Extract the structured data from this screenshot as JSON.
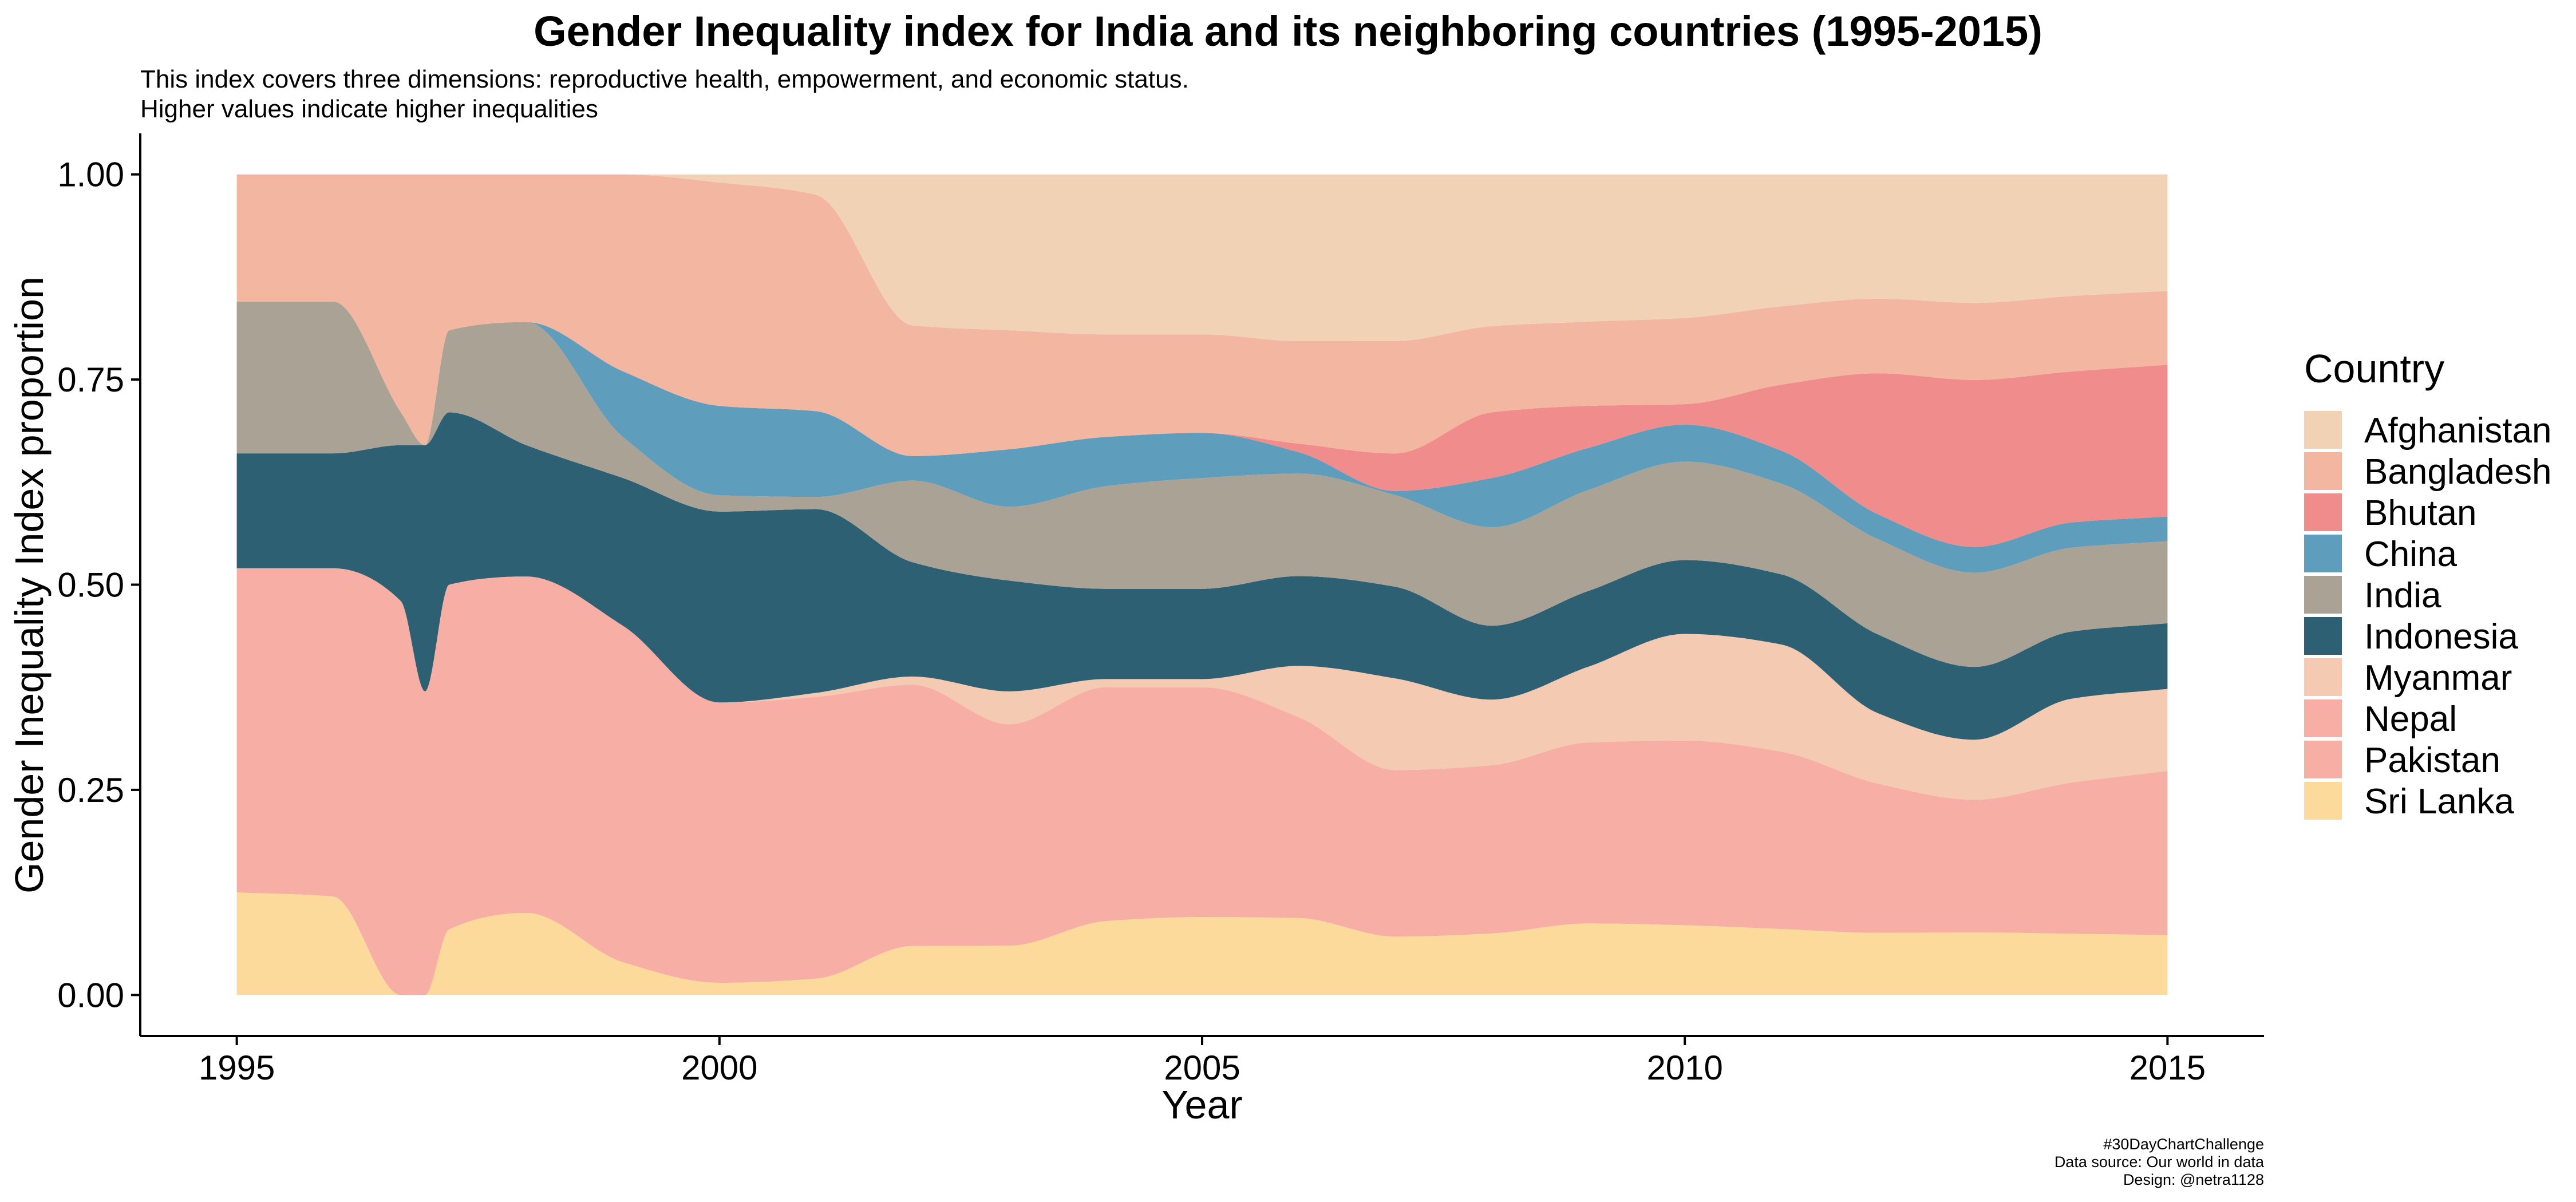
{
  "chart_data": {
    "type": "area",
    "title": "Gender Inequality index for India and its neighboring countries (1995-2015)",
    "subtitle_lines": [
      "This index covers three dimensions: reproductive health, empowerment, and economic status.",
      "Higher values indicate higher inequalities"
    ],
    "xlabel": "Year",
    "ylabel": "Gender Inequality Index proportion",
    "x_ticks": [
      1995,
      2000,
      2005,
      2010,
      2015
    ],
    "x_tick_labels": [
      "1995",
      "2000",
      "2005",
      "2010",
      "2015"
    ],
    "y_ticks": [
      0,
      0.25,
      0.5,
      0.75,
      1
    ],
    "y_tick_labels": [
      "0.00",
      "0.25",
      "0.50",
      "0.75",
      "1.00"
    ],
    "xlim": [
      1994,
      2016
    ],
    "ylim": [
      -0.05,
      1.05
    ],
    "stacked_proportion": true,
    "curve": "smooth",
    "legend_title": "Country",
    "legend_position": "right",
    "grid": false,
    "x": [
      1995,
      1996,
      1996.7,
      1996.95,
      1997.2,
      1998,
      1999,
      2000,
      2001,
      2002,
      2003,
      2004,
      2005,
      2006,
      2007,
      2008,
      2009,
      2010,
      2011,
      2012,
      2013,
      2014,
      2015
    ],
    "series": [
      {
        "name": "Sri Lanka",
        "color": "#FCDA9C",
        "values": [
          0.125,
          0.12,
          0.0,
          0.0,
          0.08,
          0.1,
          0.04,
          0.015,
          0.02,
          0.06,
          0.06,
          0.09,
          0.095,
          0.09,
          0.07,
          0.075,
          0.085,
          0.085,
          0.08,
          0.075,
          0.073,
          0.073,
          0.073
        ]
      },
      {
        "name": "Pakistan",
        "color": "#F7AEA5",
        "values": [
          0.395,
          0.4,
          0.48,
          0.37,
          0.42,
          0.41,
          0.41,
          0.345,
          0.345,
          0.32,
          0.27,
          0.285,
          0.28,
          0.235,
          0.2,
          0.205,
          0.215,
          0.225,
          0.215,
          0.18,
          0.155,
          0.18,
          0.2
        ]
      },
      {
        "name": "Nepal",
        "color": "#F7AEA5",
        "values": [
          0,
          0,
          0,
          0,
          0,
          0,
          0,
          0,
          0,
          0,
          0,
          0,
          0,
          0,
          0,
          0,
          0,
          0,
          0,
          0,
          0,
          0,
          0
        ]
      },
      {
        "name": "Myanmar",
        "color": "#F5CAB2",
        "values": [
          0,
          0,
          0,
          0,
          0,
          0,
          0,
          0,
          0.005,
          0.01,
          0.04,
          0.01,
          0.01,
          0.06,
          0.11,
          0.08,
          0.09,
          0.13,
          0.13,
          0.085,
          0.07,
          0.1,
          0.1
        ]
      },
      {
        "name": "Indonesia",
        "color": "#2D6073",
        "values": [
          0.14,
          0.14,
          0.19,
          0.3,
          0.21,
          0.16,
          0.18,
          0.235,
          0.225,
          0.14,
          0.135,
          0.11,
          0.11,
          0.105,
          0.11,
          0.09,
          0.09,
          0.09,
          0.085,
          0.095,
          0.085,
          0.08,
          0.08
        ]
      },
      {
        "name": "India",
        "color": "#ABA296",
        "values": [
          0.185,
          0.185,
          0.04,
          0.0,
          0.1,
          0.15,
          0.05,
          0.02,
          0.015,
          0.1,
          0.09,
          0.125,
          0.135,
          0.12,
          0.11,
          0.12,
          0.12,
          0.12,
          0.11,
          0.115,
          0.11,
          0.1,
          0.1
        ]
      },
      {
        "name": "China",
        "color": "#5E9EBC",
        "values": [
          0,
          0,
          0,
          0,
          0,
          0,
          0.08,
          0.11,
          0.105,
          0.03,
          0.07,
          0.06,
          0.055,
          0.025,
          0.005,
          0.06,
          0.05,
          0.045,
          0.04,
          0.03,
          0.03,
          0.03,
          0.03
        ]
      },
      {
        "name": "Bhutan",
        "color": "#F18C8C",
        "values": [
          0,
          0,
          0,
          0,
          0,
          0,
          0,
          0,
          0,
          0,
          0,
          0,
          0,
          0.01,
          0.045,
          0.08,
          0.05,
          0.025,
          0.08,
          0.17,
          0.195,
          0.18,
          0.185
        ]
      },
      {
        "name": "Bangladesh",
        "color": "#F2B6A1",
        "values": [
          0.155,
          0.155,
          0.29,
          0.33,
          0.19,
          0.18,
          0.24,
          0.275,
          0.265,
          0.16,
          0.145,
          0.125,
          0.12,
          0.12,
          0.135,
          0.105,
          0.1,
          0.105,
          0.095,
          0.09,
          0.09,
          0.09,
          0.09
        ]
      },
      {
        "name": "Afghanistan",
        "color": "#F1D2B4",
        "values": [
          0,
          0,
          0,
          0,
          0,
          0,
          0,
          0.01,
          0.025,
          0.185,
          0.19,
          0.195,
          0.195,
          0.195,
          0.2,
          0.185,
          0.175,
          0.175,
          0.16,
          0.15,
          0.15,
          0.145,
          0.142
        ]
      }
    ],
    "legend_order": [
      "Afghanistan",
      "Bangladesh",
      "Bhutan",
      "China",
      "India",
      "Indonesia",
      "Myanmar",
      "Nepal",
      "Pakistan",
      "Sri Lanka"
    ],
    "caption_lines": [
      "#30DayChartChallenge",
      "Data source: Our world in data",
      "Design: @netra1128"
    ]
  }
}
